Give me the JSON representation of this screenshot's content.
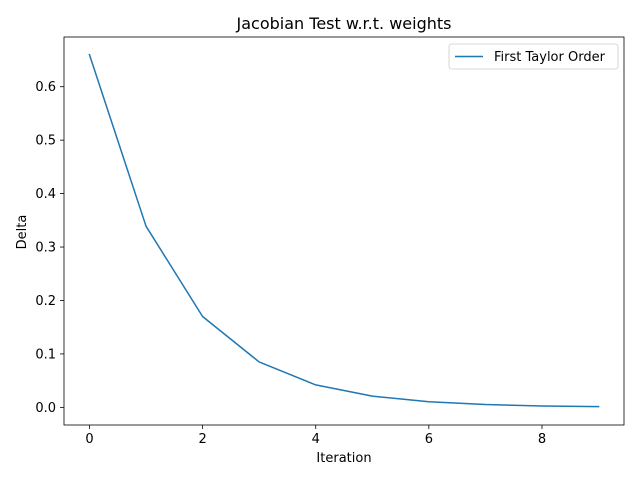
{
  "chart_data": {
    "type": "line",
    "title": "Jacobian Test w.r.t. weights",
    "xlabel": "Iteration",
    "ylabel": "Delta",
    "xlim": [
      -0.45,
      9.45
    ],
    "ylim": [
      -0.033,
      0.693
    ],
    "xticks": [
      0,
      2,
      4,
      6,
      8
    ],
    "xtick_labels": [
      "0",
      "2",
      "4",
      "6",
      "8"
    ],
    "yticks": [
      0.0,
      0.1,
      0.2,
      0.3,
      0.4,
      0.5,
      0.6
    ],
    "ytick_labels": [
      "0.0",
      "0.1",
      "0.2",
      "0.3",
      "0.4",
      "0.5",
      "0.6"
    ],
    "grid": false,
    "legend_position": "top-right",
    "series": [
      {
        "name": "First Taylor Order",
        "color": "#1f77b4",
        "x": [
          0,
          1,
          2,
          3,
          4,
          5,
          6,
          7,
          8,
          9
        ],
        "y": [
          0.66,
          0.339,
          0.17,
          0.085,
          0.042,
          0.021,
          0.0105,
          0.0053,
          0.0026,
          0.0013
        ]
      }
    ]
  }
}
